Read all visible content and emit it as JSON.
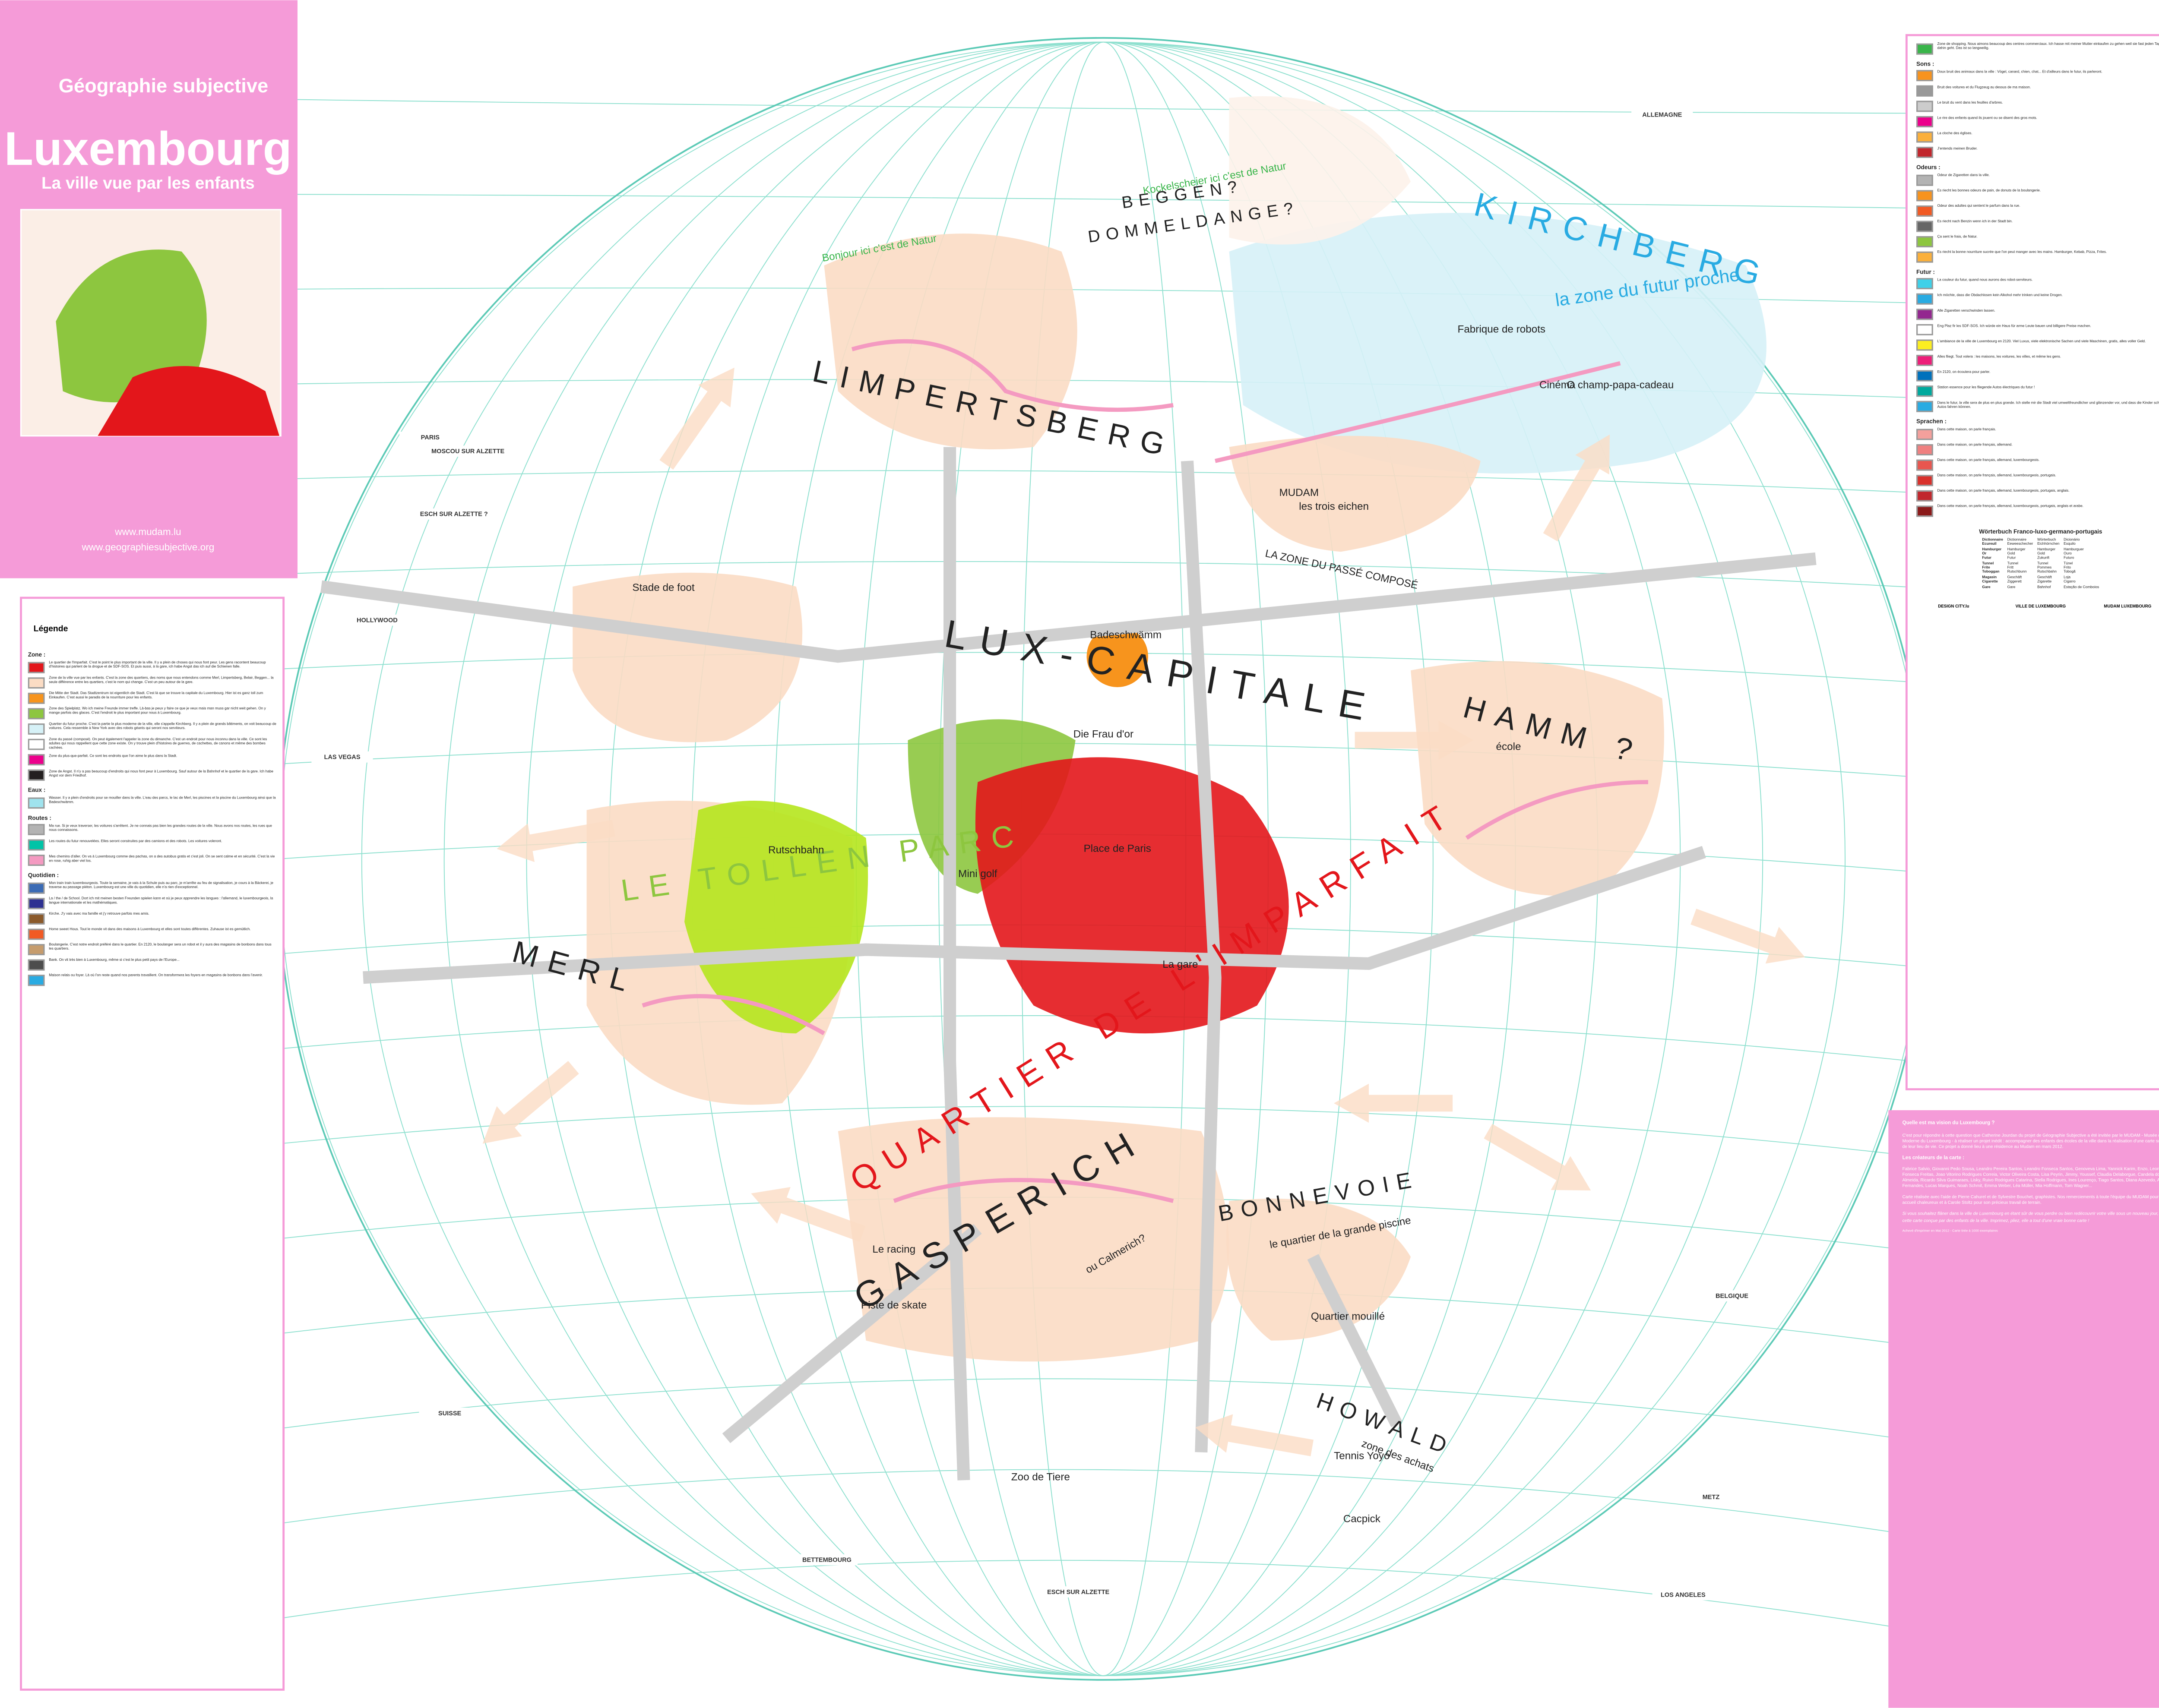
{
  "header": {
    "title": "Géographie subjective",
    "city": "Luxembourg",
    "subtitle": "La ville vue par les enfants",
    "links": [
      "www.mudam.lu",
      "www.geographiesubjective.org"
    ]
  },
  "legend": {
    "title": "Légende",
    "sections": [
      {
        "heading": "Zone :",
        "items": [
          {
            "swatch": "#e3161b",
            "text": "Le quartier de l'Imparfait. C'est le point le plus important de la ville. Il y a plein de choses qui nous font peur. Les gens racontent beaucoup d'histoires qui parlent de la drogue et de SDF-SOS. Et puis aussi, à la gare, ich habe Angst das ich auf die Schienen falle."
          },
          {
            "swatch": "#fbdcc4",
            "text": "Zone de la ville vue par les enfants. C'est la zone des quartiers, des noms que nous entendons comme Merl, Limpertsberg, Belair, Beggen... la seule différence entre les quartiers, c'est le nom qui change. C'est un peu autour de la gare."
          },
          {
            "swatch": "#f7941d",
            "text": "Die Mitte der Stadt. Das Stadtzentrum ist eigentlich die Stadt. C'est là que se trouve la capitale du Luxembourg. Hier ist es ganz toll zum Einkaufen. C'est aussi le paradis de la nourriture pour les enfants."
          },
          {
            "swatch": "#8dc63f",
            "text": "Zone des Spielplatz. Wo ich meine Freunde immer treffe. Là-bas je peux y faire ce que je veux mais man muss gar nicht weit gehen. On y mange parfois des glaces. C'est l'endroit le plus important pour nous à Luxembourg."
          },
          {
            "swatch": "#d6f1f7",
            "text": "Quartier du futur proche. C'est la partie la plus moderne de la ville, elle s'appelle Kirchberg. Il y a plein de grands bâtiments, on voit beaucoup de voitures. Cela ressemble à New York avec des robots géants qui seront nos serviteurs."
          },
          {
            "swatch": "#ffffff",
            "text": "Zone du passé (composé). On peut également l'appeler la zone du dimanche. C'est un endroit pour nous inconnu dans la ville. Ce sont les adultes qui nous rappellent que cette zone existe. On y trouve plein d'histoires de guerres, de cachettes, de canons et même des bombes cachées."
          },
          {
            "swatch": "#ec008c",
            "text": "Zone du plus-que-parfait. Ce sont les endroits que l'on aime le plus dans la Stadt."
          },
          {
            "swatch": "#231f20",
            "text": "Zone de Angst. Il n'y a pas beaucoup d'endroits qui nous font peur à Luxembourg. Sauf autour de la Bahnhof et le quartier de la gare. Ich habe Angst vor dem Friedhof."
          }
        ]
      },
      {
        "heading": "Eaux :",
        "items": [
          {
            "swatch": "#9fe3ee",
            "text": "Wasser. Il y a plein d'endroits pour se mouiller dans la ville. L'eau des parcs, le lac de Merl, les piscines et la piscine du Luxembourg ainsi que la Badeschwämm."
          }
        ]
      },
      {
        "heading": "Routes :",
        "items": [
          {
            "swatch": "#b3b3b3",
            "text": "Ma rue. Si je veux traverser, les voitures s'arrêtent. Je ne connais pas bien les grandes routes de la ville. Nous avons nos routes, les rues que nous connaissons."
          },
          {
            "swatch": "#00c4a7",
            "text": "Les routes du futur renouvelées. Elles seront construites par des camions et des robots. Les voitures voleront."
          },
          {
            "swatch": "#f49ac1",
            "text": "Mes chemins d'aller. On va à Luxembourg comme des pachas, on a des autobus gratis et c'est joli. On se sent calme et en sécurité. C'est la vie en rose, ruhig aber viel los."
          }
        ]
      },
      {
        "heading": "Quotidien :",
        "items": [
          {
            "swatch": "#3b6bb5",
            "text": "Mon train train luxembourgeois. Toute la semaine, je vais à la Schule puis au parc, je m'arrête au feu de signalisation, je cours à la Bäckerei, je traverse au passage piéton. Luxembourg est une ville du quotidien, elle n'a rien d'exceptionnel."
          },
          {
            "swatch": "#2e3192",
            "text": "La / the / de School. Dort ich mit meinen besten Freunden spielen kann et où je peux apprendre les langues : l'allemand, le luxembourgeois, la langue internationale et les mathématiques."
          },
          {
            "swatch": "#8b5a2b",
            "text": "Kirche. J'y vais avec ma famille et j'y retrouve parfois mes amis."
          },
          {
            "swatch": "#f15a24",
            "text": "Home sweet Hous. Tout le monde vit dans des maisons à Luxembourg et elles sont toutes différentes. Zuhause ist es gemütlich."
          },
          {
            "swatch": "#c69c6d",
            "text": "Boulangerie. C'est notre endroit préféré dans le quartier. En 2120, le boulanger sera un robot et il y aura des magasins de bonbons dans tous les quartiers."
          },
          {
            "swatch": "#4d4d4d",
            "text": "Bank. On vit très bien à Luxembourg, même si c'est le plus petit pays de l'Europe..."
          },
          {
            "swatch": "#29abe2",
            "text": "Maison relais ou foyer. Là où l'on reste quand nos parents travaillent. On transformera les foyers en magasins de bonbons dans l'avenir."
          }
        ]
      }
    ]
  },
  "key": {
    "sections": [
      {
        "heading": "",
        "items": [
          {
            "swatch": "#39b54a",
            "text": "Zone de shopping. Nous aimons beaucoup des centres commerciaux. Ich hasse mit meiner Mutter einkaufen zu gehen weil sie fast jeden Tag dahin geht. Das ist so langweilig."
          }
        ]
      },
      {
        "heading": "Sons :",
        "items": [
          {
            "swatch": "#f7931e",
            "text": "Doux bruit des animaux dans la ville : Vögel, canard, chien, chat... Et d'ailleurs dans le futur, ils parleront."
          },
          {
            "swatch": "#999999",
            "text": "Bruit des voitures et du Flugzeug au dessus de ma maison."
          },
          {
            "swatch": "#cccccc",
            "text": "Le bruit du vent dans les feuilles d'arbres."
          },
          {
            "swatch": "#ec008c",
            "text": "Le rire des enfants quand ils jouent ou se disent des gros mots."
          },
          {
            "swatch": "#fbb03b",
            "text": "La cloche des églises."
          },
          {
            "swatch": "#c1272d",
            "text": "J'entends meinen Bruder."
          }
        ]
      },
      {
        "heading": "Odeurs :",
        "items": [
          {
            "swatch": "#b3b3b3",
            "text": "Odeur de Zigaretten dans la ville."
          },
          {
            "swatch": "#f7931e",
            "text": "Es riecht les bonnes odeurs de pain, de donuts de la boulangerie."
          },
          {
            "swatch": "#f15a24",
            "text": "Odeur des adultes qui sentent le parfum dans la rue."
          },
          {
            "swatch": "#666666",
            "text": "Es riecht nach Benzin wenn ich in der Stadt bin."
          },
          {
            "swatch": "#8dc63f",
            "text": "Ça sent le frais, de Natur."
          },
          {
            "swatch": "#fbb03b",
            "text": "Es riecht la bonne nourriture sucrée que l'on peut manger avec les mains. Hamburger, Kebab, Pizza, Frites."
          }
        ]
      },
      {
        "heading": "Futur :",
        "items": [
          {
            "swatch": "#3fd0e8",
            "text": "La couleur du futur, quand nous aurons des robot-serviteurs."
          },
          {
            "swatch": "#29abe2",
            "text": "Ich möchte, dass die Obdachlosen kein Alkohol mehr trinken und keine Drogen."
          },
          {
            "swatch": "#93278f",
            "text": "Alle Zigaretten verschwinden lassen."
          },
          {
            "swatch": "#ffffff",
            "text": "Eng Plaz fir les SDF-SOS. Ich würde ein Haus für arme Leute bauen und billigere Preise machen."
          },
          {
            "swatch": "#fcee21",
            "text": "L'ambiance de la ville de Luxembourg en 2120. Viel Luxus, viele elektronische Sachen und viele Maschinen, gratis, alles voller Geld."
          },
          {
            "swatch": "#ed1e79",
            "text": "Alles fliegt. Tout volera : les maisons, les voitures, les villes, et même les gens."
          },
          {
            "swatch": "#0071bc",
            "text": "En 2120, on écoutera pour parler."
          },
          {
            "swatch": "#00a99d",
            "text": "Station essence pour les fliegende Autos électriques du futur !"
          },
          {
            "swatch": "#29abe2",
            "text": "Dans le futur, la ville sera de plus en plus grande. Ich stelle mir die Stadt viel umweltfreundlicher und glänzender vor, und dass die Kinder schon Autos fahren können."
          }
        ]
      },
      {
        "heading": "Sprachen :",
        "items": [
          {
            "swatch": "#f4a09c",
            "text": "Dans cette maison, on parle français."
          },
          {
            "swatch": "#f08080",
            "text": "Dans cette maison, on parle français, allemand."
          },
          {
            "swatch": "#e8564f",
            "text": "Dans cette maison, on parle français, allemand, luxembourgeois."
          },
          {
            "swatch": "#d9302b",
            "text": "Dans cette maison, on parle français, allemand, luxembourgeois, portugais."
          },
          {
            "swatch": "#c1272d",
            "text": "Dans cette maison, on parle français, allemand, luxembourgeois, portugais, anglais."
          },
          {
            "swatch": "#8b1a1a",
            "text": "Dans cette maison, on parle français, allemand, luxembourgeois, portugais, anglais et arabe."
          }
        ]
      }
    ]
  },
  "dictionary": {
    "title": "Wörterbuch Franco-luxo-germano-portugais",
    "rows": [
      [
        "Dictionnaire",
        "Dictionnaire",
        "Wörterbuch",
        "Dicionário"
      ],
      [
        "Ecureuil",
        "Eeweeschecher",
        "Eichhörnchen",
        "Esquilo"
      ],
      [
        "Hamburger",
        "Hamburger",
        "Hamburger",
        "Hamburguer"
      ],
      [
        "Or",
        "Gold",
        "Gold",
        "Ouro"
      ],
      [
        "Futur",
        "Futur",
        "Zukunft",
        "Futuro"
      ],
      [
        "Tunnel",
        "Tunnel",
        "Tunnel",
        "Túnel"
      ],
      [
        "Frite",
        "Fritt",
        "Pommes",
        "Frito"
      ],
      [
        "Toboggan",
        "Rutschbunn",
        "Rutschbahn",
        "Tobogã"
      ],
      [
        "Magasin",
        "Geschäft",
        "Geschäft",
        "Loja"
      ],
      [
        "Cigarette",
        "Ziggerett",
        "Zigarette",
        "Cigarro"
      ],
      [
        "Gare",
        "Gare",
        "Bahnhof",
        "Estação de Comboios"
      ]
    ]
  },
  "logos": [
    "DESIGN CITY.lu",
    "VILLE DE LUXEMBOURG",
    "MUDAM LUXEMBOURG"
  ],
  "info": {
    "question": "Quelle est ma vision du Luxembourg ?",
    "intro": "C'est pour répondre à cette question que Catherine Jourdan du projet de Géographie Subjective a été invitée par le MUDAM - Musée d'Art Moderne du Luxembourg - à réaliser un projet inédit : accompagner des enfants des écoles de la ville dans la réalisation d'une carte subjective de leur lieu de vie. Ce projet a donné lieu à une résidence au Mudam en mars 2012.",
    "creators_heading": "Les créateurs de la carte :",
    "creators": "Fabrice Salvio, Giovanni Pedo Sousa, Leandro Pereira Santos, Leandro Fonseca Santos, Genoveva Lima, Yannick Karim, Enzo, Leonardo Fonseca Freitas, Joao Vitorino Rodrigues Correia, Victor Oliveira Costa, Lisa Peyrin, Jimmy, Youssef, Claudia Delaborgue, Candela dos Santos Almeida, Ricardo Silva Guimaraes, Lisky, Ruivo Rodrigues Catarina, Stella Rodrigues, Ines Lourenço, Tiago Santos, Diana Azevedo, Alessia Fernandes, Lucas Marques, Noah Schmit, Emma Weber, Léa Müller, Mia Hoffmann, Tom Wagner...",
    "credits": "Carte réalisée avec l'aide de Pierre Cahurel et de Sylvestre Bouchet, graphistes. Nos remerciements à toute l'équipe du MUDAM pour son accueil chaleureux et à Carole Stoltz pour son précieux travail de terrain.",
    "closing": "Si vous souhaitez flâner dans la ville de Luxembourg en étant sûr de vous perdre ou bien redécouvrir votre ville sous un nouveau jour, utilisez cette carte conçue par des enfants de la ville. Imprimez, pliez, elle a tout d'une vraie bonne carte !",
    "footnote": "Achevé d'imprimer en Mai 2012 - Carte tirée à 1000 exemplaires"
  },
  "map": {
    "districts": [
      "LIMPERTSBERG",
      "LUX-CAPITALE",
      "HAMM ?",
      "MERL",
      "LE TOLLEN PARC",
      "QUARTIER DE L'IMPARFAIT",
      "GASPERICH",
      "BONNEVOIE",
      "KIRCHBERG",
      "HOWALD",
      "BEGGEN?",
      "DOMMELDANGE?"
    ],
    "places": [
      "Stade de foot",
      "Badeschwämm",
      "Die Frau d'or",
      "Place de Paris",
      "La gare",
      "Mini golf",
      "Rutschbahn",
      "école",
      "Cinéma",
      "O champ-papa-cadeau",
      "Fabrique de robots",
      "les trois eichen",
      "MUDAM",
      "Le racing",
      "Piste de skate",
      "Quartier mouillé",
      "Zoo de Tiere",
      "Tennis Yoyo",
      "Cacpick",
      "la zone du futur proche",
      "LA ZONE DU PASSÉ COMPOSÉ",
      "le quartier de la grande piscine",
      "zone des achats",
      "ou Calmerich?",
      "Kockelscheier ici c'est de Natur",
      "Bonjour ici c'est de Natur"
    ],
    "edges": [
      "ALLEMAGNE",
      "BELGIQUE",
      "PARIS",
      "MOSCOU SUR ALZETTE",
      "ESCH SUR ALZETTE ?",
      "HOLLYWOOD",
      "LAS VEGAS",
      "SUISSE",
      "METZ",
      "LOS ANGELES",
      "ESCH SUR ALZETTE",
      "BETTEMBOURG"
    ]
  }
}
